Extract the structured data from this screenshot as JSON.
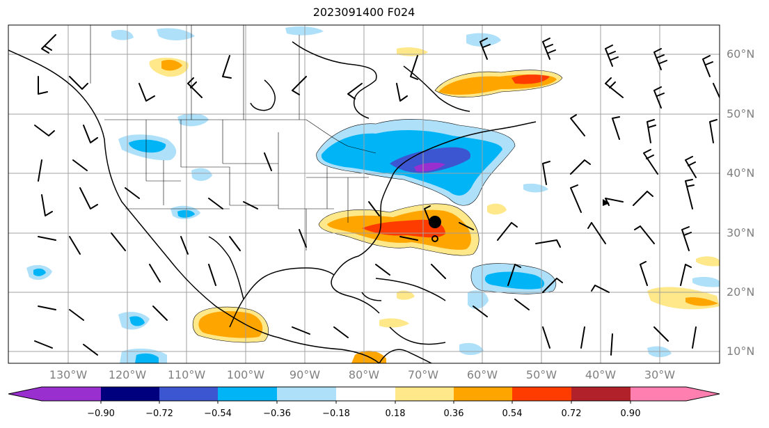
{
  "title": "2023091400 F024",
  "lat_labels": [
    "60°N",
    "50°N",
    "40°N",
    "30°N",
    "20°N",
    "10°N"
  ],
  "lon_labels": [
    "130°W",
    "120°W",
    "110°W",
    "100°W",
    "90°W",
    "80°W",
    "70°W",
    "60°W",
    "50°W",
    "40°W",
    "30°W"
  ],
  "colorbar": {
    "tick_labels": [
      "−0.90",
      "−0.72",
      "−0.54",
      "−0.36",
      "−0.18",
      "0.18",
      "0.36",
      "0.54",
      "0.72",
      "0.90"
    ],
    "colors": [
      "#9a2fd0",
      "#00007f",
      "#3b56d0",
      "#00b4f6",
      "#aee0fa",
      "#ffffff",
      "#ffe88a",
      "#ffa500",
      "#ff3c00",
      "#b0212a",
      "#ff7fb0"
    ],
    "extend": "both"
  },
  "map_features": {
    "storm_center_marker": "filled black circle",
    "secondary_marker": "open circle"
  }
}
